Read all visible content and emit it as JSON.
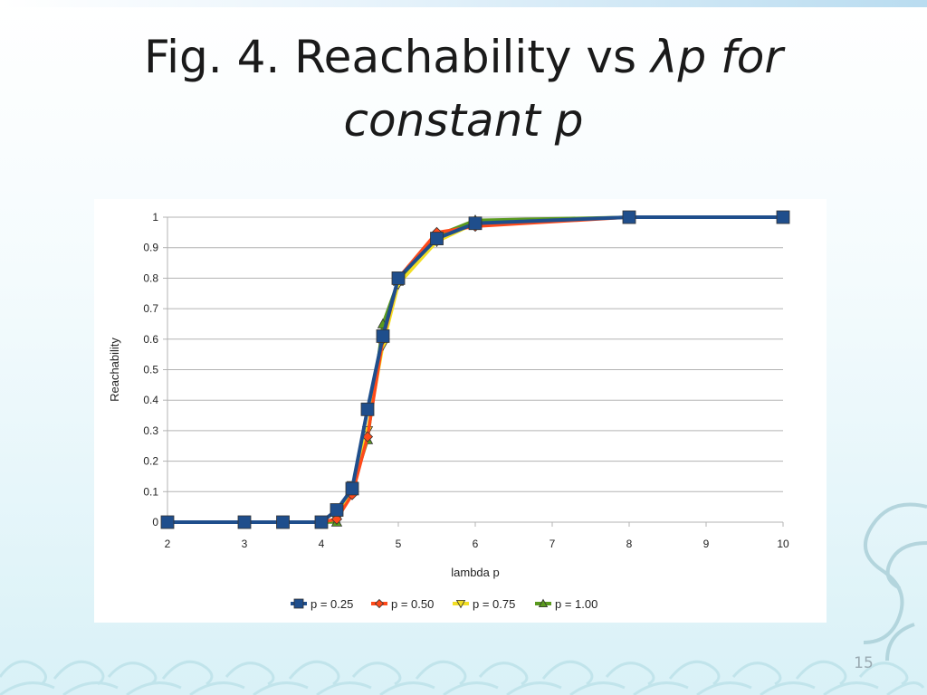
{
  "slide": {
    "title_line1": "Fig. 4. Reachability ",
    "title_vs": "vs ",
    "title_lambda": "λp for",
    "title_line2": "constant p",
    "slide_number": "15"
  },
  "chart_data": {
    "type": "line",
    "xlabel": "lambda p",
    "ylabel": "Reachability",
    "xlim": [
      2,
      10
    ],
    "ylim": [
      0,
      1
    ],
    "xticks": [
      2,
      3,
      4,
      5,
      6,
      7,
      8,
      9,
      10
    ],
    "yticks": [
      "0",
      "0.1",
      "0.2",
      "0.3",
      "0.4",
      "0.5",
      "0.6",
      "0.7",
      "0.8",
      "0.9",
      "1"
    ],
    "grid": "horizontal",
    "legend_position": "bottom",
    "series": [
      {
        "name": "p = 0.25",
        "color": "#1f4e8c",
        "marker": "square",
        "x": [
          2,
          3,
          3.5,
          4,
          4.2,
          4.4,
          4.6,
          4.8,
          5,
          5.5,
          6,
          8,
          10
        ],
        "y": [
          0,
          0,
          0,
          0,
          0.04,
          0.11,
          0.37,
          0.61,
          0.8,
          0.93,
          0.98,
          1.0,
          1.0
        ]
      },
      {
        "name": "p = 0.50",
        "color": "#ff4a1a",
        "marker": "diamond",
        "x": [
          4,
          4.2,
          4.4,
          4.6,
          4.8,
          5,
          5.5,
          6,
          8,
          10
        ],
        "y": [
          0,
          0.01,
          0.09,
          0.28,
          0.6,
          0.8,
          0.95,
          0.97,
          1.0,
          1.0
        ]
      },
      {
        "name": "p = 0.75",
        "color": "#f2de24",
        "marker": "triangle-down",
        "x": [
          4,
          4.2,
          4.4,
          4.6,
          4.8,
          5,
          5.5,
          6,
          8,
          10
        ],
        "y": [
          0,
          0.01,
          0.12,
          0.3,
          0.58,
          0.78,
          0.92,
          0.98,
          1.0,
          1.0
        ]
      },
      {
        "name": "p = 1.00",
        "color": "#5a9a1e",
        "marker": "triangle-up",
        "x": [
          4,
          4.2,
          4.4,
          4.6,
          4.8,
          5,
          5.5,
          6,
          8,
          10
        ],
        "y": [
          0,
          0,
          0.11,
          0.27,
          0.65,
          0.79,
          0.94,
          0.99,
          1.0,
          1.0
        ]
      }
    ]
  }
}
